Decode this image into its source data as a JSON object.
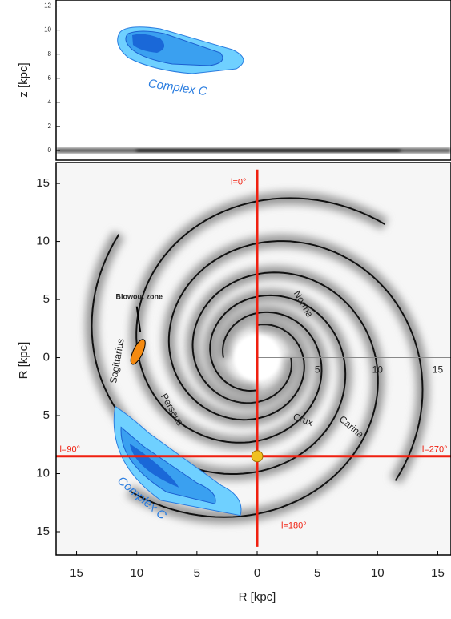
{
  "chart_data": [
    {
      "type": "edge-on",
      "ylabel": "z [kpc]",
      "xlim": [
        -16.7,
        16.1
      ],
      "ylim": [
        -0.8,
        12.5
      ],
      "yticks": [
        0,
        2,
        4,
        6,
        8,
        10,
        12
      ],
      "annotation": "Complex C"
    },
    {
      "type": "face-on",
      "xlabel": "R [kpc]",
      "ylabel": "R [kpc]",
      "xlim": [
        -16.7,
        16.1
      ],
      "ylim": [
        -17,
        16.8
      ],
      "xticks": [
        {
          "value": -15,
          "label": "15"
        },
        {
          "value": -10,
          "label": "10"
        },
        {
          "value": -5,
          "label": "5"
        },
        0,
        5,
        10,
        15
      ],
      "yticks": [
        15,
        10,
        5,
        0,
        {
          "value": -5,
          "label": "5"
        },
        {
          "value": -10,
          "label": "10"
        },
        {
          "value": -15,
          "label": "15"
        }
      ],
      "inner_xticks": [
        5,
        10,
        15
      ],
      "sun": [
        0,
        -8.5
      ],
      "longitudes": [
        "l=0°",
        "l=90°",
        "l=180°",
        "l=270°"
      ],
      "arms": [
        "Norma",
        "Crux",
        "Carina",
        "Sagittarius",
        "Perseus"
      ],
      "blowout": "Blowout zone",
      "annotation": "Complex C"
    }
  ]
}
